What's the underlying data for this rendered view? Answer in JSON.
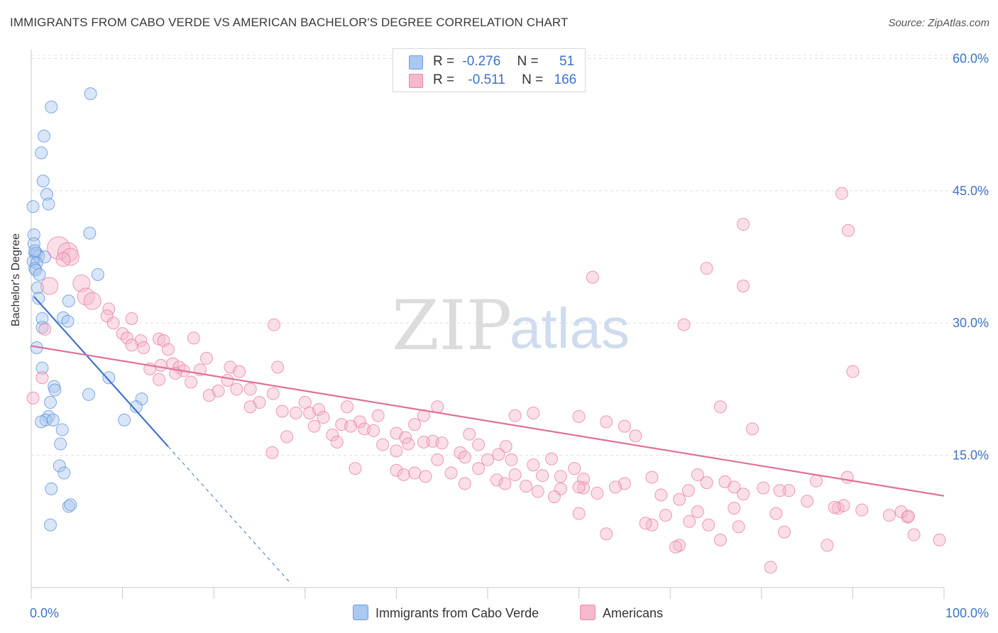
{
  "title": "IMMIGRANTS FROM CABO VERDE VS AMERICAN BACHELOR'S DEGREE CORRELATION CHART",
  "source": "Source: ZipAtlas.com",
  "watermark": {
    "zip": "ZIP",
    "atlas": "atlas"
  },
  "legend": {
    "rows": [
      {
        "r_label": "R =",
        "r_value": "-0.276",
        "n_label": "N =",
        "n_value": "51",
        "color": "#aac8f0"
      },
      {
        "r_label": "R =",
        "r_value": "-0.511",
        "n_label": "N =",
        "n_value": "166",
        "color": "#f5b8cc"
      }
    ]
  },
  "bottom_legend": [
    {
      "label": "Immigrants from Cabo Verde",
      "color": "#aac8f0"
    },
    {
      "label": "Americans",
      "color": "#f5b8cc"
    }
  ],
  "chart_data": {
    "type": "scatter",
    "xlabel": "",
    "ylabel": "Bachelor's Degree",
    "xlim": [
      0,
      100
    ],
    "ylim": [
      0,
      61
    ],
    "x_tick_labels": [
      {
        "value": 0,
        "label": "0.0%"
      },
      {
        "value": 100,
        "label": "100.0%"
      }
    ],
    "y_ticks": [
      {
        "value": 15,
        "label": "15.0%"
      },
      {
        "value": 30,
        "label": "30.0%"
      },
      {
        "value": 45,
        "label": "45.0%"
      },
      {
        "value": 60,
        "label": "60.0%"
      }
    ],
    "grid": true,
    "series": [
      {
        "name": "Immigrants from Cabo Verde",
        "color": "#5a8fd8",
        "fill": "#aac8f0",
        "trend": {
          "x0": 0.3,
          "y0": 33,
          "x1": 15,
          "y1": 16,
          "dash_to_x": 28.5,
          "dash_to_y": 0.4,
          "color": "#3b73c9"
        },
        "points": [
          [
            6.5,
            56
          ],
          [
            2.2,
            54.5
          ],
          [
            1.4,
            51.2
          ],
          [
            1.1,
            49.3
          ],
          [
            1.3,
            46.1
          ],
          [
            1.7,
            44.6
          ],
          [
            1.9,
            43.5
          ],
          [
            0.2,
            43.2
          ],
          [
            6.4,
            40.2
          ],
          [
            0.3,
            40
          ],
          [
            0.3,
            39
          ],
          [
            0.4,
            37.9
          ],
          [
            0.6,
            37.9
          ],
          [
            0.8,
            37.6
          ],
          [
            1.5,
            37.5
          ],
          [
            0.2,
            37
          ],
          [
            0.6,
            36.8
          ],
          [
            0.4,
            36.2
          ],
          [
            0.5,
            36
          ],
          [
            0.9,
            35.5
          ],
          [
            7.3,
            35.5
          ],
          [
            0.7,
            34
          ],
          [
            0.8,
            32.8
          ],
          [
            4.1,
            32.5
          ],
          [
            1.2,
            30.5
          ],
          [
            3.5,
            30.6
          ],
          [
            4,
            30.2
          ],
          [
            1.2,
            29.5
          ],
          [
            0.6,
            27.2
          ],
          [
            1.2,
            24.9
          ],
          [
            8.5,
            23.8
          ],
          [
            2.5,
            22.8
          ],
          [
            2.6,
            22.4
          ],
          [
            6.3,
            21.9
          ],
          [
            12.1,
            21.4
          ],
          [
            2.1,
            21
          ],
          [
            11.5,
            20.5
          ],
          [
            1.9,
            19.4
          ],
          [
            1.6,
            19
          ],
          [
            2.4,
            19
          ],
          [
            1.1,
            18.8
          ],
          [
            10.2,
            19
          ],
          [
            3.4,
            17.9
          ],
          [
            3.2,
            16.3
          ],
          [
            3.1,
            13.8
          ],
          [
            3.6,
            13
          ],
          [
            2.2,
            11.2
          ],
          [
            4.1,
            9.2
          ],
          [
            4.3,
            9.4
          ],
          [
            2.1,
            7.1
          ],
          [
            0.4,
            38.2
          ]
        ]
      },
      {
        "name": "Americans",
        "color": "#e878a0",
        "fill": "#f5b8cc",
        "trend": {
          "x0": 0,
          "y0": 27.4,
          "x1": 100,
          "y1": 10.4,
          "color": "#e0709a"
        },
        "points": [
          [
            3,
            38.5
          ],
          [
            4,
            38
          ],
          [
            4.3,
            37.5
          ],
          [
            3.5,
            37.2
          ],
          [
            2,
            34.2
          ],
          [
            5.5,
            34.5
          ],
          [
            6,
            33
          ],
          [
            6.7,
            32.5
          ],
          [
            8.5,
            31.6
          ],
          [
            8.3,
            30.8
          ],
          [
            11,
            30.5
          ],
          [
            9,
            30
          ],
          [
            1.5,
            29.3
          ],
          [
            10,
            28.8
          ],
          [
            10.5,
            28.3
          ],
          [
            14,
            28.2
          ],
          [
            12,
            28
          ],
          [
            14.5,
            28
          ],
          [
            11,
            27.5
          ],
          [
            12.3,
            27.2
          ],
          [
            15,
            27
          ],
          [
            17.8,
            28.3
          ],
          [
            19.2,
            26
          ],
          [
            15.5,
            25.4
          ],
          [
            13,
            24.8
          ],
          [
            14.2,
            25.2
          ],
          [
            16.2,
            25
          ],
          [
            16.7,
            24.6
          ],
          [
            15.8,
            24.3
          ],
          [
            18.5,
            24.7
          ],
          [
            21.8,
            25
          ],
          [
            22.8,
            24.5
          ],
          [
            27,
            25
          ],
          [
            26.6,
            29.8
          ],
          [
            1.2,
            23.8
          ],
          [
            14,
            23.6
          ],
          [
            17.5,
            23.3
          ],
          [
            21.5,
            23.5
          ],
          [
            22.5,
            22.5
          ],
          [
            19.5,
            21.8
          ],
          [
            20.5,
            22.3
          ],
          [
            24,
            22.5
          ],
          [
            26.5,
            22
          ],
          [
            0.2,
            21.5
          ],
          [
            30,
            21
          ],
          [
            25,
            21
          ],
          [
            24,
            20.5
          ],
          [
            27.5,
            20
          ],
          [
            29,
            19.8
          ],
          [
            30.5,
            19.8
          ],
          [
            34.6,
            20.5
          ],
          [
            31.5,
            20.2
          ],
          [
            32,
            19.3
          ],
          [
            34,
            18.5
          ],
          [
            38,
            19.5
          ],
          [
            31,
            18.3
          ],
          [
            36,
            18.8
          ],
          [
            35,
            18.3
          ],
          [
            36.5,
            18
          ],
          [
            37.5,
            17.8
          ],
          [
            40,
            17.5
          ],
          [
            41,
            17
          ],
          [
            42,
            18.5
          ],
          [
            43,
            19.5
          ],
          [
            44.5,
            20.5
          ],
          [
            53,
            19.5
          ],
          [
            55,
            19.8
          ],
          [
            60,
            19.4
          ],
          [
            63,
            18.8
          ],
          [
            65,
            18.3
          ],
          [
            66.2,
            17.2
          ],
          [
            28,
            17.1
          ],
          [
            33,
            17.3
          ],
          [
            41.3,
            16.3
          ],
          [
            33.5,
            16.5
          ],
          [
            26.4,
            15.3
          ],
          [
            38.5,
            16.2
          ],
          [
            40,
            15.5
          ],
          [
            43,
            16.5
          ],
          [
            44,
            16.6
          ],
          [
            48,
            17.4
          ],
          [
            45,
            16.4
          ],
          [
            47,
            15.3
          ],
          [
            49,
            16.2
          ],
          [
            52,
            16
          ],
          [
            55,
            13.9
          ],
          [
            57,
            14.6
          ],
          [
            51.2,
            15.1
          ],
          [
            52.6,
            14.5
          ],
          [
            44.5,
            14.5
          ],
          [
            47.5,
            14.8
          ],
          [
            50,
            14.5
          ],
          [
            46,
            13
          ],
          [
            53,
            12.8
          ],
          [
            58,
            12.6
          ],
          [
            60.5,
            12.3
          ],
          [
            56,
            12.7
          ],
          [
            59.5,
            13.5
          ],
          [
            40,
            13.3
          ],
          [
            42,
            13
          ],
          [
            40.8,
            12.8
          ],
          [
            35.5,
            13.5
          ],
          [
            43.2,
            12.6
          ],
          [
            49,
            13.5
          ],
          [
            51,
            12.2
          ],
          [
            47.5,
            11.8
          ],
          [
            54.2,
            11.5
          ],
          [
            60.5,
            11.3
          ],
          [
            51.9,
            11.8
          ],
          [
            55.5,
            10.9
          ],
          [
            58,
            11.2
          ],
          [
            60,
            11.4
          ],
          [
            65,
            11.8
          ],
          [
            72,
            11
          ],
          [
            78,
            10.6
          ],
          [
            83,
            11
          ],
          [
            85,
            9.8
          ],
          [
            88.4,
            9
          ],
          [
            89,
            9.3
          ],
          [
            91,
            8.8
          ],
          [
            94,
            8.2
          ],
          [
            96,
            8
          ],
          [
            64,
            11.4
          ],
          [
            62,
            10.7
          ],
          [
            57.3,
            10.3
          ],
          [
            69,
            10.5
          ],
          [
            71,
            10
          ],
          [
            68,
            12.5
          ],
          [
            73,
            12.8
          ],
          [
            74,
            11.9
          ],
          [
            76,
            12
          ],
          [
            77,
            11.4
          ],
          [
            80.2,
            11.3
          ],
          [
            82,
            11
          ],
          [
            86,
            12.1
          ],
          [
            89.4,
            12.5
          ],
          [
            69.5,
            8.2
          ],
          [
            60,
            8.4
          ],
          [
            73,
            8.6
          ],
          [
            77,
            9
          ],
          [
            81.6,
            8.4
          ],
          [
            95.3,
            8.6
          ],
          [
            96.1,
            8.1
          ],
          [
            88,
            9.1
          ],
          [
            96.7,
            6
          ],
          [
            99.5,
            5.4
          ],
          [
            81,
            2.3
          ],
          [
            87.2,
            4.8
          ],
          [
            71,
            4.8
          ],
          [
            70.6,
            4.6
          ],
          [
            75.5,
            5.4
          ],
          [
            82.5,
            6.3
          ],
          [
            63,
            6.1
          ],
          [
            68,
            7.1
          ],
          [
            77.5,
            6.9
          ],
          [
            74.2,
            7.1
          ],
          [
            67.3,
            7.3
          ],
          [
            72.1,
            7.5
          ],
          [
            75.5,
            20.5
          ],
          [
            79,
            18
          ],
          [
            90,
            24.5
          ],
          [
            88.8,
            44.7
          ],
          [
            89.5,
            40.5
          ],
          [
            78,
            41.2
          ],
          [
            74,
            36.2
          ],
          [
            78,
            34.2
          ],
          [
            71.5,
            29.8
          ],
          [
            61.5,
            35.2
          ]
        ]
      }
    ]
  }
}
